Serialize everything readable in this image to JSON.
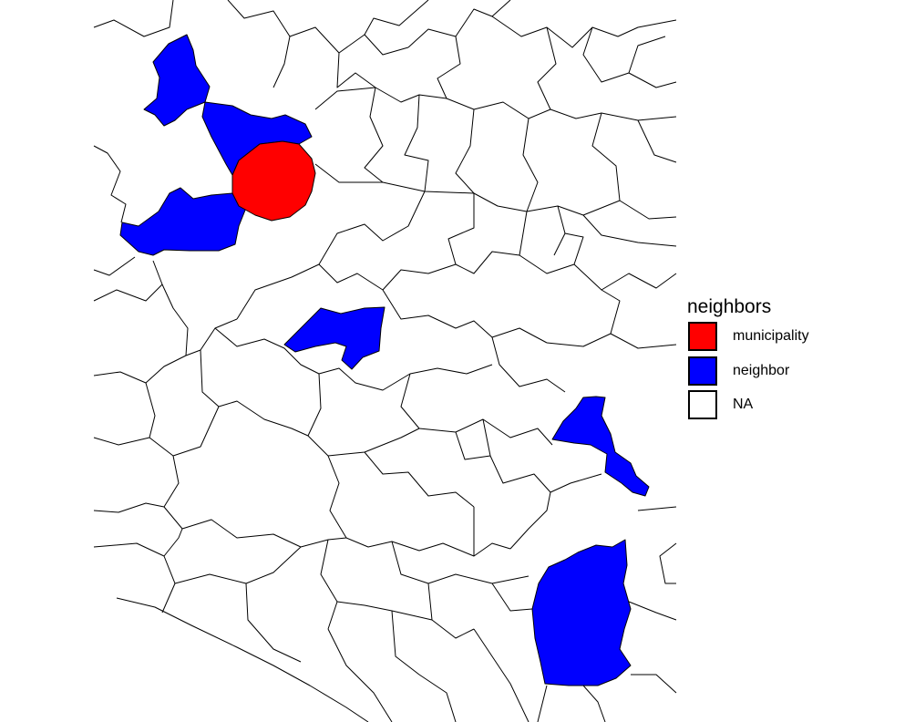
{
  "legend": {
    "title": "neighbors",
    "items": [
      {
        "label": "municipality",
        "color": "#ff0000"
      },
      {
        "label": "neighbor",
        "color": "#0000ff"
      },
      {
        "label": "NA",
        "color": "#ffffff"
      }
    ]
  },
  "colors": {
    "municipality": "#ff0000",
    "neighbor": "#0000ff",
    "background": "#ffffff",
    "border": "#000000"
  }
}
